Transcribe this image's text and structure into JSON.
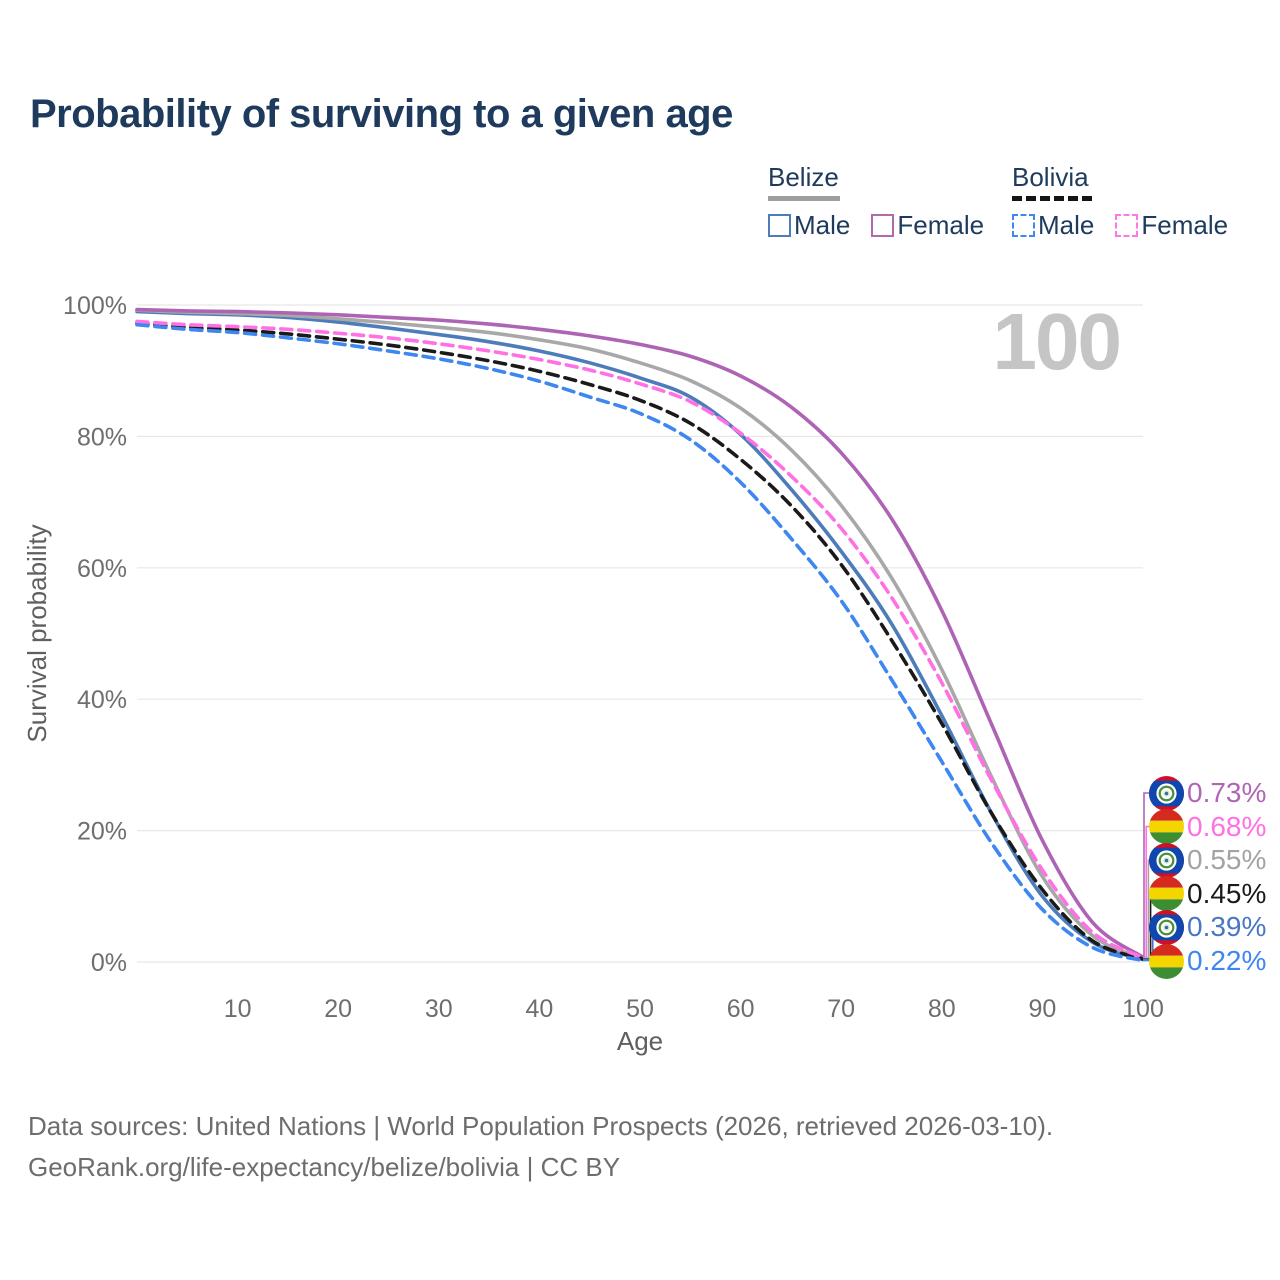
{
  "title": "Probability of surviving to a given age",
  "watermark": "100",
  "legend": {
    "groups": [
      {
        "country": "Belize",
        "line_style": "solid",
        "underline_color": "#9e9e9e",
        "items": [
          {
            "label": "Male",
            "color": "#4d7cba"
          },
          {
            "label": "Female",
            "color": "#b269ae"
          }
        ]
      },
      {
        "country": "Bolivia",
        "line_style": "dashed",
        "underline_color": "#151515",
        "items": [
          {
            "label": "Male",
            "color": "#3e86f0"
          },
          {
            "label": "Female",
            "color": "#ff77e4"
          }
        ]
      }
    ]
  },
  "chart_data": {
    "type": "line",
    "title": "Probability of surviving to a given age",
    "xlabel": "Age",
    "ylabel": "Survival probability",
    "xlim": [
      0,
      100
    ],
    "ylim": [
      0,
      100
    ],
    "grid": "horizontal-only",
    "xticks": [
      10,
      20,
      30,
      40,
      50,
      60,
      70,
      80,
      90,
      100
    ],
    "yticks": [
      0,
      20,
      40,
      60,
      80,
      100
    ],
    "ytick_suffix": "%",
    "x": [
      0,
      5,
      10,
      15,
      20,
      25,
      30,
      35,
      40,
      45,
      50,
      55,
      60,
      65,
      70,
      75,
      80,
      85,
      90,
      95,
      100
    ],
    "series": [
      {
        "name": "Belize Female",
        "country": "belize",
        "style": "solid",
        "color": "#ae64b4",
        "label_color": "#b065b5",
        "end_label": "0.73%",
        "values": [
          99.3,
          99.1,
          99.0,
          98.8,
          98.5,
          98.1,
          97.7,
          97.1,
          96.3,
          95.3,
          94.0,
          92.2,
          89.2,
          84.5,
          77.5,
          67.5,
          53.5,
          36.0,
          18.5,
          6.0,
          0.73
        ]
      },
      {
        "name": "Bolivia Female",
        "country": "bolivia",
        "style": "dashed",
        "color": "#ff70e4",
        "label_color": "#ff70e4",
        "end_label": "0.68%",
        "values": [
          97.5,
          97.0,
          96.7,
          96.3,
          95.7,
          95.0,
          94.1,
          93.0,
          91.7,
          90.1,
          88.0,
          85.3,
          80.5,
          74.0,
          66.0,
          55.5,
          42.5,
          27.5,
          14.0,
          4.5,
          0.68
        ]
      },
      {
        "name": "Belize",
        "country": "belize",
        "style": "solid",
        "color": "#a8a8a8",
        "label_color": "#a3a3a3",
        "end_label": "0.55%",
        "values": [
          99.2,
          98.9,
          98.7,
          98.4,
          97.9,
          97.3,
          96.6,
          95.8,
          94.7,
          93.3,
          91.2,
          88.5,
          84.3,
          78.0,
          69.5,
          58.5,
          44.5,
          28.0,
          13.0,
          4.0,
          0.55
        ]
      },
      {
        "name": "Bolivia",
        "country": "bolivia",
        "style": "dashed",
        "color": "#1a1a1a",
        "label_color": "#1a1a1a",
        "end_label": "0.45%",
        "values": [
          97.2,
          96.6,
          96.2,
          95.6,
          94.8,
          93.9,
          92.8,
          91.5,
          89.9,
          87.9,
          85.5,
          82.0,
          76.5,
          69.5,
          60.5,
          49.0,
          36.3,
          22.5,
          11.0,
          3.2,
          0.45
        ]
      },
      {
        "name": "Belize Male",
        "country": "belize",
        "style": "solid",
        "color": "#4d7cba",
        "label_color": "#4a76c6",
        "end_label": "0.39%",
        "values": [
          99.0,
          98.7,
          98.5,
          98.1,
          97.4,
          96.5,
          95.5,
          94.4,
          93.0,
          91.2,
          88.9,
          86.0,
          80.3,
          72.0,
          62.5,
          51.5,
          37.5,
          22.5,
          10.0,
          3.0,
          0.39
        ]
      },
      {
        "name": "Bolivia Male",
        "country": "bolivia",
        "style": "dashed",
        "color": "#3e86f0",
        "label_color": "#3e86f0",
        "end_label": "0.22%",
        "values": [
          97.0,
          96.3,
          95.8,
          95.0,
          94.1,
          93.0,
          91.8,
          90.3,
          88.4,
          86.0,
          83.5,
          79.5,
          73.0,
          64.5,
          55.0,
          43.0,
          30.5,
          18.0,
          8.0,
          2.2,
          0.22
        ]
      }
    ],
    "end_labels": [
      {
        "value": "0.73%",
        "flag": "belize",
        "color": "#b065b5"
      },
      {
        "value": "0.68%",
        "flag": "bolivia",
        "color": "#ff70e4"
      },
      {
        "value": "0.55%",
        "flag": "belize",
        "color": "#a3a3a3"
      },
      {
        "value": "0.45%",
        "flag": "bolivia",
        "color": "#1a1a1a"
      },
      {
        "value": "0.39%",
        "flag": "belize",
        "color": "#4a76c6"
      },
      {
        "value": "0.22%",
        "flag": "bolivia",
        "color": "#3e86f0"
      }
    ],
    "annotations": {
      "watermark": "100"
    }
  },
  "footer": {
    "line1": "Data sources: United Nations | World Population Prospects (2026, retrieved 2026-03-10).",
    "line2": "GeoRank.org/life-expectancy/belize/bolivia | CC BY"
  }
}
